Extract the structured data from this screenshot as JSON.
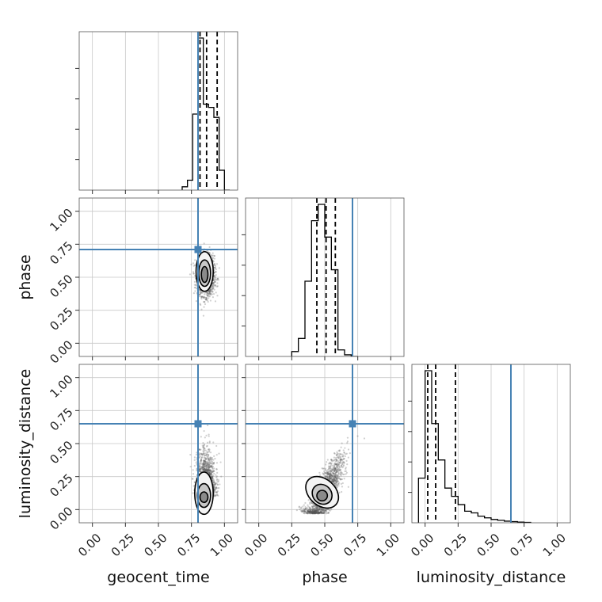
{
  "chart_data": {
    "type": "corner",
    "parameters": [
      "geocent_time",
      "phase",
      "luminosity_distance"
    ],
    "axis_labels": {
      "bottom": [
        "geocent_time",
        "phase",
        "luminosity_distance"
      ],
      "left": [
        "phase",
        "luminosity_distance"
      ]
    },
    "ticks": [
      0.0,
      0.25,
      0.5,
      0.75,
      1.0
    ],
    "tick_labels": [
      "0.00",
      "0.25",
      "0.50",
      "0.75",
      "1.00"
    ],
    "xlim": [
      -0.1,
      1.1
    ],
    "grid": true,
    "colors": {
      "truth": "#4682b4",
      "hist": "#000000",
      "grid": "#c8c8c8",
      "scatter": "#555555"
    },
    "truths": {
      "geocent_time": 0.8,
      "phase": 0.71,
      "luminosity_distance": 0.65
    },
    "quantiles": {
      "geocent_time": [
        0.815,
        0.865,
        0.945
      ],
      "phase": [
        0.44,
        0.51,
        0.58
      ],
      "luminosity_distance": [
        0.02,
        0.08,
        0.23
      ]
    },
    "histograms": {
      "geocent_time": {
        "bins": [
          0.68,
          0.72,
          0.76,
          0.8,
          0.84,
          0.88,
          0.92,
          0.96,
          1.0,
          1.04
        ],
        "counts": [
          2,
          6,
          46,
          92,
          52,
          50,
          44,
          12,
          0
        ]
      },
      "phase": {
        "bins": [
          0.25,
          0.3,
          0.35,
          0.4,
          0.45,
          0.5,
          0.55,
          0.6,
          0.65,
          0.7,
          0.75
        ],
        "counts": [
          3,
          11,
          46,
          83,
          93,
          73,
          53,
          4,
          1,
          0
        ]
      },
      "luminosity_distance": {
        "bins": [
          -0.05,
          0.0,
          0.05,
          0.1,
          0.15,
          0.2,
          0.25,
          0.3,
          0.35,
          0.4,
          0.45,
          0.5,
          0.55,
          0.6,
          0.65,
          0.7,
          0.75,
          0.8
        ],
        "counts": [
          27,
          92,
          60,
          38,
          21,
          16,
          11,
          7,
          6,
          4,
          3,
          2,
          1.5,
          1,
          0.7,
          0.4,
          0.2
        ]
      }
    },
    "scatter_2d": [
      {
        "x": "geocent_time",
        "y": "phase",
        "center": [
          0.86,
          0.51
        ],
        "spread": [
          0.032,
          0.075
        ],
        "correlation": 0.0,
        "mode": [
          0.84,
          0.5
        ],
        "contours": [
          [
            0.025,
            0.06
          ],
          [
            0.045,
            0.1
          ],
          [
            0.065,
            0.15
          ]
        ]
      },
      {
        "x": "geocent_time",
        "y": "luminosity_distance",
        "center": [
          0.86,
          0.1
        ],
        "spread": [
          0.035,
          0.15
        ],
        "correlation": 0.0,
        "mode": [
          0.83,
          0.06
        ],
        "contours": [
          [
            0.03,
            0.04
          ],
          [
            0.05,
            0.09
          ],
          [
            0.07,
            0.16
          ]
        ]
      },
      {
        "x": "phase",
        "y": "luminosity_distance",
        "center": [
          0.5,
          0.12
        ],
        "spread": [
          0.07,
          0.14
        ],
        "correlation": 0.82,
        "mode": [
          0.46,
          0.06
        ],
        "contours": [
          [
            0.04,
            0.04,
            0.5
          ],
          [
            0.07,
            0.08,
            0.6
          ],
          [
            0.1,
            0.14,
            0.7
          ]
        ]
      }
    ]
  }
}
